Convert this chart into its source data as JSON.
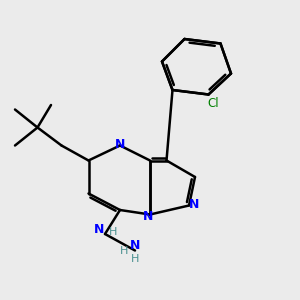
{
  "bg_color": "#ebebeb",
  "black": "#000000",
  "blue": "#0000FF",
  "green": "#008000",
  "teal": "#008080",
  "lw": 1.8,
  "lw_double": 1.8,
  "xlim": [
    0,
    10
  ],
  "ylim": [
    0,
    10
  ]
}
